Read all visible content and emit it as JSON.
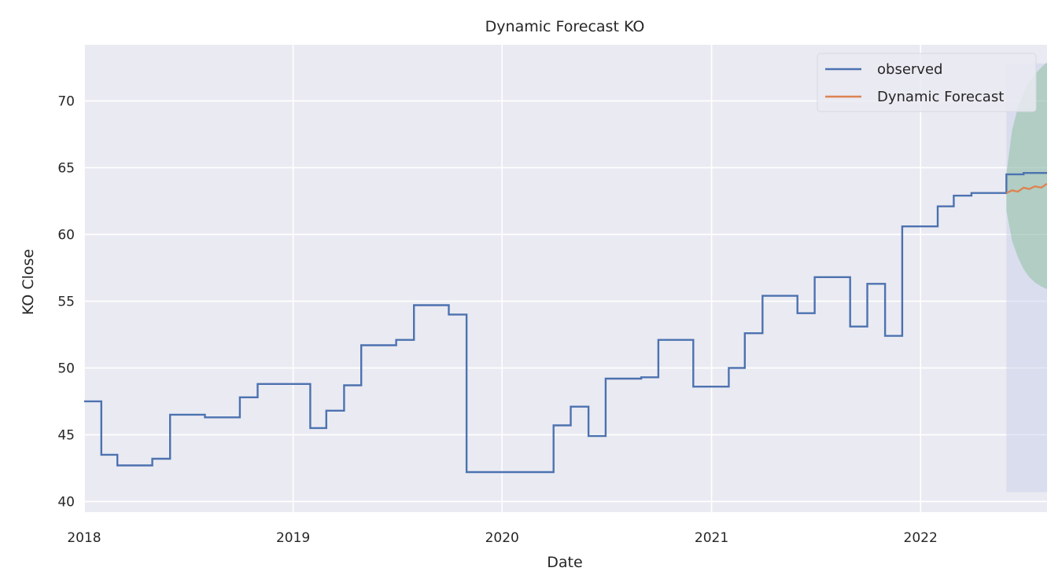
{
  "chart_data": {
    "type": "line",
    "title": "Dynamic Forecast KO",
    "xlabel": "Date",
    "ylabel": "KO Close",
    "xlim": [
      "2018-01-01",
      "2022-08-10"
    ],
    "ylim": [
      39.2,
      74.2
    ],
    "x_ticks": [
      "2018",
      "2019",
      "2020",
      "2021",
      "2022"
    ],
    "y_ticks": [
      40,
      45,
      50,
      55,
      60,
      65,
      70
    ],
    "grid": true,
    "legend_position": "top-right",
    "colors": {
      "background": "#eaeaf2",
      "grid": "#ffffff",
      "observed": "#4c72b0",
      "forecast": "#dd8452",
      "confidence_band": "#55a868",
      "forecast_shade": "#c5cfe6"
    },
    "series": [
      {
        "name": "observed",
        "style": "step",
        "points": [
          [
            "2018-01-01",
            47.5
          ],
          [
            "2018-01-31",
            43.5
          ],
          [
            "2018-02-28",
            42.7
          ],
          [
            "2018-04-30",
            43.2
          ],
          [
            "2018-05-31",
            46.5
          ],
          [
            "2018-07-31",
            46.3
          ],
          [
            "2018-09-30",
            47.8
          ],
          [
            "2018-10-31",
            48.8
          ],
          [
            "2018-12-31",
            48.8
          ],
          [
            "2019-01-31",
            45.5
          ],
          [
            "2019-02-28",
            46.8
          ],
          [
            "2019-03-31",
            48.7
          ],
          [
            "2019-04-30",
            51.7
          ],
          [
            "2019-06-30",
            52.1
          ],
          [
            "2019-07-31",
            54.7
          ],
          [
            "2019-09-30",
            54.0
          ],
          [
            "2019-10-31",
            42.2
          ],
          [
            "2020-03-31",
            45.7
          ],
          [
            "2020-04-30",
            47.1
          ],
          [
            "2020-05-31",
            44.9
          ],
          [
            "2020-06-30",
            49.2
          ],
          [
            "2020-08-31",
            49.3
          ],
          [
            "2020-09-30",
            52.1
          ],
          [
            "2020-11-30",
            48.6
          ],
          [
            "2021-01-31",
            50.0
          ],
          [
            "2021-02-28",
            52.6
          ],
          [
            "2021-03-31",
            55.4
          ],
          [
            "2021-05-31",
            54.1
          ],
          [
            "2021-06-30",
            56.8
          ],
          [
            "2021-08-31",
            53.1
          ],
          [
            "2021-09-30",
            56.3
          ],
          [
            "2021-10-31",
            52.4
          ],
          [
            "2021-11-30",
            60.6
          ],
          [
            "2022-01-31",
            62.1
          ],
          [
            "2022-02-28",
            62.9
          ],
          [
            "2022-03-31",
            63.1
          ],
          [
            "2022-05-31",
            64.5
          ],
          [
            "2022-06-30",
            64.6
          ],
          [
            "2022-08-10",
            64.6
          ]
        ]
      },
      {
        "name": "Dynamic Forecast",
        "style": "line",
        "points": [
          [
            "2022-05-31",
            63.1
          ],
          [
            "2022-06-10",
            63.3
          ],
          [
            "2022-06-20",
            63.2
          ],
          [
            "2022-06-30",
            63.5
          ],
          [
            "2022-07-10",
            63.4
          ],
          [
            "2022-07-20",
            63.6
          ],
          [
            "2022-07-31",
            63.5
          ],
          [
            "2022-08-10",
            63.8
          ]
        ]
      }
    ],
    "confidence_interval": {
      "points": [
        [
          "2022-05-31",
          64.5,
          61.8
        ],
        [
          "2022-06-10",
          67.8,
          59.5
        ],
        [
          "2022-06-20",
          69.5,
          58.3
        ],
        [
          "2022-06-30",
          70.6,
          57.4
        ],
        [
          "2022-07-10",
          71.4,
          56.8
        ],
        [
          "2022-07-20",
          72.0,
          56.4
        ],
        [
          "2022-07-31",
          72.5,
          56.1
        ],
        [
          "2022-08-10",
          72.9,
          55.9
        ]
      ]
    },
    "forecast_region": {
      "start": "2022-05-31",
      "end": "2022-08-10",
      "ymin": 40.7,
      "ymax": 72.8
    }
  }
}
